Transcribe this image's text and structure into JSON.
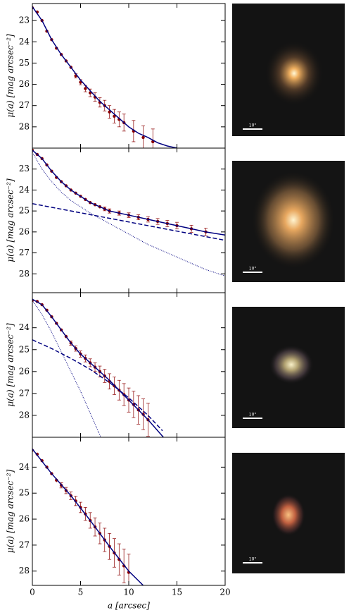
{
  "chart_data": [
    {
      "type": "scatter",
      "ylabel": "μ(a) [mag arcsec⁻²]",
      "xlim": [
        0,
        20
      ],
      "xticks": [
        0,
        5,
        10,
        15,
        20
      ],
      "ylim": [
        22.2,
        29.0
      ],
      "yticks": [
        23,
        24,
        25,
        26,
        27,
        28
      ],
      "invert_y": true,
      "series": [
        {
          "color": "#8b0000",
          "x": [
            0,
            0.5,
            1,
            1.5,
            2,
            2.5,
            3,
            3.5,
            4,
            4.5,
            5,
            5.5,
            6,
            6.5,
            7,
            7.5,
            8,
            8.5,
            9,
            9.5,
            10.5,
            11.5,
            12.5
          ],
          "values": [
            22.4,
            22.6,
            23.0,
            23.5,
            23.9,
            24.3,
            24.6,
            24.9,
            25.2,
            25.6,
            25.9,
            26.2,
            26.4,
            26.6,
            26.85,
            27.0,
            27.3,
            27.5,
            27.65,
            27.8,
            28.2,
            28.5,
            28.7
          ],
          "errors": [
            0.02,
            0.02,
            0.03,
            0.03,
            0.04,
            0.05,
            0.06,
            0.07,
            0.08,
            0.1,
            0.12,
            0.15,
            0.18,
            0.2,
            0.22,
            0.25,
            0.3,
            0.32,
            0.35,
            0.4,
            0.5,
            0.55,
            0.6
          ]
        },
        {
          "color": "#000080",
          "style": "solid",
          "x": [
            0,
            1,
            2,
            3,
            4,
            5,
            6,
            7,
            8,
            9,
            10,
            11,
            12,
            13,
            14,
            15
          ],
          "values": [
            22.35,
            23.0,
            23.9,
            24.6,
            25.2,
            25.8,
            26.3,
            26.8,
            27.2,
            27.6,
            28.0,
            28.3,
            28.5,
            28.75,
            28.9,
            29.0
          ]
        }
      ]
    },
    {
      "type": "scatter",
      "ylabel": "μ(a) [mag arcsec⁻²]",
      "xlim": [
        0,
        20
      ],
      "xticks": [
        0,
        5,
        10,
        15,
        20
      ],
      "ylim": [
        22.0,
        28.9
      ],
      "yticks": [
        23,
        24,
        25,
        26,
        27,
        28
      ],
      "invert_y": true,
      "series": [
        {
          "color": "#8b0000",
          "x": [
            0,
            0.5,
            1,
            1.5,
            2,
            2.5,
            3,
            3.5,
            4,
            4.5,
            5,
            5.5,
            6,
            6.5,
            7,
            7.5,
            8,
            9,
            10,
            11,
            12,
            13,
            14,
            15,
            16.5,
            18
          ],
          "values": [
            22.1,
            22.3,
            22.5,
            22.8,
            23.1,
            23.4,
            23.6,
            23.8,
            24.0,
            24.15,
            24.3,
            24.45,
            24.6,
            24.7,
            24.8,
            24.9,
            25.0,
            25.1,
            25.2,
            25.3,
            25.4,
            25.5,
            25.6,
            25.7,
            25.85,
            26.0
          ],
          "errors": [
            0.02,
            0.02,
            0.02,
            0.03,
            0.03,
            0.04,
            0.04,
            0.05,
            0.05,
            0.06,
            0.06,
            0.07,
            0.07,
            0.08,
            0.08,
            0.09,
            0.1,
            0.1,
            0.11,
            0.12,
            0.13,
            0.14,
            0.15,
            0.16,
            0.17,
            0.18
          ]
        },
        {
          "color": "#000080",
          "style": "solid",
          "x": [
            0,
            1,
            2,
            3,
            4,
            5,
            6,
            8,
            10,
            12,
            14,
            16,
            18,
            20
          ],
          "values": [
            22.1,
            22.5,
            23.1,
            23.6,
            24.0,
            24.3,
            24.6,
            25.0,
            25.2,
            25.4,
            25.6,
            25.8,
            26.0,
            26.15
          ]
        },
        {
          "color": "#000080",
          "style": "dashed",
          "x": [
            0,
            20
          ],
          "values": [
            24.65,
            26.4
          ]
        },
        {
          "color": "#000080",
          "style": "dotted",
          "x": [
            0,
            1,
            2,
            3,
            4,
            5,
            6,
            8,
            10,
            12,
            14,
            16,
            18,
            20
          ],
          "values": [
            22.2,
            23.0,
            23.6,
            24.1,
            24.5,
            24.8,
            25.1,
            25.6,
            26.1,
            26.6,
            27.0,
            27.4,
            27.8,
            28.1
          ]
        }
      ]
    },
    {
      "type": "scatter",
      "ylabel": "μ(a) [mag arcsec⁻²]",
      "xlim": [
        0,
        20
      ],
      "xticks": [
        0,
        5,
        10,
        15,
        20
      ],
      "ylim": [
        22.4,
        29.0
      ],
      "yticks": [
        24,
        25,
        26,
        27,
        28
      ],
      "invert_y": true,
      "series": [
        {
          "color": "#8b0000",
          "x": [
            0,
            0.5,
            1,
            1.5,
            2,
            2.5,
            3,
            3.5,
            4,
            4.5,
            5,
            5.5,
            6,
            6.5,
            7,
            7.5,
            8,
            8.5,
            9,
            9.5,
            10,
            10.5,
            11,
            11.5,
            12
          ],
          "values": [
            22.75,
            22.8,
            22.95,
            23.2,
            23.5,
            23.8,
            24.1,
            24.4,
            24.7,
            24.95,
            25.2,
            25.4,
            25.6,
            25.8,
            26.0,
            26.2,
            26.45,
            26.65,
            26.85,
            27.05,
            27.3,
            27.5,
            27.75,
            27.95,
            28.2
          ],
          "errors": [
            0.02,
            0.02,
            0.03,
            0.03,
            0.04,
            0.05,
            0.06,
            0.08,
            0.1,
            0.12,
            0.14,
            0.16,
            0.18,
            0.2,
            0.25,
            0.3,
            0.35,
            0.4,
            0.45,
            0.5,
            0.55,
            0.6,
            0.65,
            0.7,
            0.75
          ]
        },
        {
          "color": "#000080",
          "style": "solid",
          "x": [
            0,
            1,
            2,
            3,
            4,
            5,
            6,
            8,
            10,
            12,
            13.6
          ],
          "values": [
            22.7,
            22.95,
            23.5,
            24.1,
            24.7,
            25.2,
            25.6,
            26.4,
            27.3,
            28.2,
            29.0
          ]
        },
        {
          "color": "#000080",
          "style": "dashed",
          "x": [
            0,
            2,
            4,
            6,
            8,
            10,
            12,
            13.5
          ],
          "values": [
            24.55,
            24.95,
            25.4,
            25.9,
            26.5,
            27.2,
            28.0,
            28.7
          ]
        },
        {
          "color": "#000080",
          "style": "dotted",
          "x": [
            0,
            1,
            2,
            3,
            4,
            5,
            6,
            7.1
          ],
          "values": [
            22.75,
            23.4,
            24.2,
            25.1,
            26.0,
            26.9,
            27.9,
            29.0
          ]
        }
      ]
    },
    {
      "type": "scatter",
      "ylabel": "μ(a) [mag arcsec⁻²]",
      "xlabel": "a [arcsec]",
      "xtick_labels": true,
      "xlim": [
        0,
        20
      ],
      "xticks": [
        0,
        5,
        10,
        15,
        20
      ],
      "ylim": [
        22.85,
        28.55
      ],
      "yticks": [
        24,
        25,
        26,
        27,
        28
      ],
      "invert_y": true,
      "series": [
        {
          "color": "#8b0000",
          "x": [
            0,
            0.5,
            1,
            1.5,
            2,
            2.5,
            3,
            3.5,
            4,
            4.5,
            5,
            5.5,
            6,
            6.5,
            7,
            7.5,
            8,
            8.5,
            9,
            9.5,
            10
          ],
          "values": [
            23.35,
            23.5,
            23.75,
            24.0,
            24.25,
            24.5,
            24.7,
            24.9,
            25.1,
            25.3,
            25.55,
            25.8,
            26.05,
            26.3,
            26.55,
            26.8,
            27.05,
            27.3,
            27.55,
            27.8,
            28.05
          ],
          "errors": [
            0.02,
            0.03,
            0.04,
            0.05,
            0.06,
            0.08,
            0.1,
            0.12,
            0.15,
            0.18,
            0.2,
            0.25,
            0.3,
            0.35,
            0.4,
            0.45,
            0.5,
            0.55,
            0.6,
            0.65,
            0.7
          ]
        },
        {
          "color": "#000080",
          "style": "solid",
          "x": [
            0,
            2,
            4,
            6,
            8,
            10,
            11.5
          ],
          "values": [
            23.3,
            24.25,
            25.1,
            26.05,
            27.05,
            28.0,
            28.55
          ]
        }
      ]
    }
  ],
  "thumbnails": [
    {
      "scale_label": "10\""
    },
    {
      "scale_label": "10\""
    },
    {
      "scale_label": "10\""
    },
    {
      "scale_label": "10\""
    }
  ]
}
